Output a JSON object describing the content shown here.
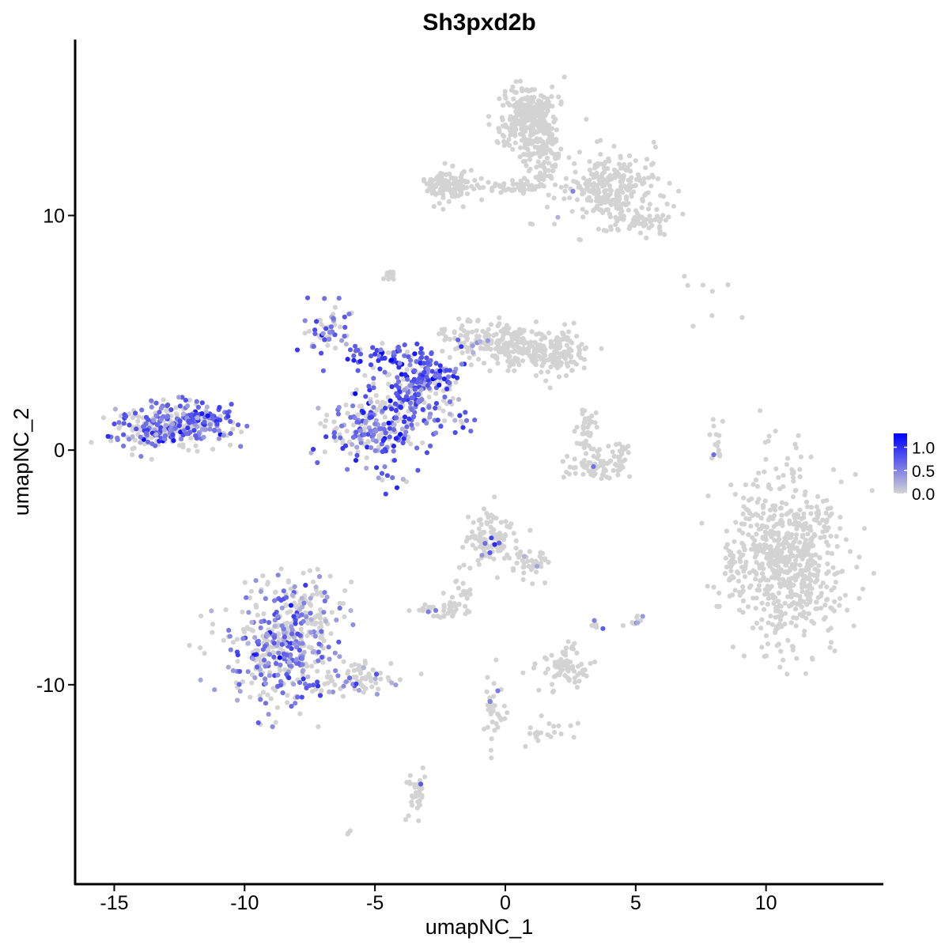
{
  "chart_data": {
    "type": "scatter",
    "title": "Sh3pxd2b",
    "xlabel": "umapNC_1",
    "ylabel": "umapNC_2",
    "xlim": [
      -16.5,
      14.5
    ],
    "ylim": [
      -18.5,
      17.5
    ],
    "x_ticks": [
      -15,
      -10,
      -5,
      0,
      5,
      10
    ],
    "x_tick_labels": [
      "-15",
      "-10",
      "-5",
      "0",
      "5",
      "10"
    ],
    "y_ticks": [
      -10,
      0,
      10
    ],
    "y_tick_labels": [
      "-10",
      "0",
      "10"
    ],
    "grid": false,
    "legend_position": "right",
    "color_scale": {
      "low_color": "#d3d3d3",
      "high_color": "#0000ff",
      "min": 0.0,
      "max": 1.3,
      "legend_ticks": [
        1.0,
        0.5,
        0.0
      ],
      "legend_tick_labels": [
        "1.0",
        "0.5",
        "0.0"
      ]
    },
    "clusters": [
      {
        "cx": 10.8,
        "cy": -4.6,
        "sx": 1.05,
        "sy": 1.8,
        "n": 650,
        "expr_frac": 0.0,
        "expr_mean": 0.0
      },
      {
        "cx": 8.6,
        "cy": -4.9,
        "sx": 0.15,
        "sy": 0.5,
        "n": 20,
        "expr_frac": 0.0,
        "expr_mean": 0.0
      },
      {
        "cx": 0.9,
        "cy": 14.1,
        "sx": 0.55,
        "sy": 0.75,
        "n": 320,
        "expr_frac": 0.0,
        "expr_mean": 0.0
      },
      {
        "cx": 1.5,
        "cy": 12.6,
        "sx": 0.35,
        "sy": 0.9,
        "n": 90,
        "expr_frac": 0.0,
        "expr_mean": 0.0
      },
      {
        "cx": 4.0,
        "cy": 11.1,
        "sx": 1.0,
        "sy": 0.8,
        "n": 260,
        "expr_frac": 0.01,
        "expr_mean": 0.5
      },
      {
        "cx": 5.3,
        "cy": 9.8,
        "sx": 0.55,
        "sy": 0.25,
        "n": 60,
        "expr_frac": 0.0,
        "expr_mean": 0.0
      },
      {
        "cx": -2.2,
        "cy": 11.3,
        "sx": 0.45,
        "sy": 0.35,
        "n": 120,
        "expr_frac": 0.0,
        "expr_mean": 0.0
      },
      {
        "cx": 0.2,
        "cy": 11.2,
        "sx": 0.7,
        "sy": 0.15,
        "n": 45,
        "expr_frac": 0.0,
        "expr_mean": 0.0
      },
      {
        "cx": -1.4,
        "cy": 4.8,
        "sx": 0.6,
        "sy": 0.45,
        "n": 80,
        "expr_frac": 0.1,
        "expr_mean": 0.45
      },
      {
        "cx": 0.3,
        "cy": 4.5,
        "sx": 0.6,
        "sy": 0.5,
        "n": 150,
        "expr_frac": 0.0,
        "expr_mean": 0.0
      },
      {
        "cx": 1.9,
        "cy": 4.1,
        "sx": 0.55,
        "sy": 0.45,
        "n": 150,
        "expr_frac": 0.0,
        "expr_mean": 0.0
      },
      {
        "cx": -4.4,
        "cy": 7.4,
        "sx": 0.12,
        "sy": 0.15,
        "n": 15,
        "expr_frac": 0.0,
        "expr_mean": 0.0
      },
      {
        "cx": -12.7,
        "cy": 1.1,
        "sx": 1.05,
        "sy": 0.45,
        "n": 280,
        "expr_frac": 0.62,
        "expr_mean": 0.65
      },
      {
        "cx": -11.5,
        "cy": 1.3,
        "sx": 0.35,
        "sy": 0.15,
        "n": 40,
        "expr_frac": 0.7,
        "expr_mean": 0.7
      },
      {
        "cx": -13.8,
        "cy": 0.6,
        "sx": 0.5,
        "sy": 0.3,
        "n": 50,
        "expr_frac": 0.35,
        "expr_mean": 0.55
      },
      {
        "cx": -4.9,
        "cy": 0.9,
        "sx": 0.95,
        "sy": 0.9,
        "n": 250,
        "expr_frac": 0.6,
        "expr_mean": 0.65
      },
      {
        "cx": -3.5,
        "cy": 2.5,
        "sx": 0.6,
        "sy": 0.6,
        "n": 90,
        "expr_frac": 0.7,
        "expr_mean": 0.7
      },
      {
        "cx": -4.3,
        "cy": 4.0,
        "sx": 0.75,
        "sy": 0.25,
        "n": 70,
        "expr_frac": 0.75,
        "expr_mean": 0.8
      },
      {
        "cx": -2.7,
        "cy": 3.1,
        "sx": 0.55,
        "sy": 0.35,
        "n": 70,
        "expr_frac": 0.75,
        "expr_mean": 0.75
      },
      {
        "cx": -6.8,
        "cy": 5.1,
        "sx": 0.45,
        "sy": 0.55,
        "n": 60,
        "expr_frac": 0.55,
        "expr_mean": 0.6
      },
      {
        "cx": -2.1,
        "cy": 1.4,
        "sx": 0.45,
        "sy": 0.4,
        "n": 25,
        "expr_frac": 0.5,
        "expr_mean": 0.6
      },
      {
        "cx": 3.1,
        "cy": 0.7,
        "sx": 0.2,
        "sy": 0.5,
        "n": 40,
        "expr_frac": 0.0,
        "expr_mean": 0.0
      },
      {
        "cx": 3.4,
        "cy": -0.7,
        "sx": 0.65,
        "sy": 0.25,
        "n": 70,
        "expr_frac": 0.01,
        "expr_mean": 0.5
      },
      {
        "cx": 4.4,
        "cy": -0.1,
        "sx": 0.2,
        "sy": 0.4,
        "n": 20,
        "expr_frac": 0.0,
        "expr_mean": 0.0
      },
      {
        "cx": 8.1,
        "cy": 0.3,
        "sx": 0.15,
        "sy": 0.5,
        "n": 15,
        "expr_frac": 0.2,
        "expr_mean": 0.6
      },
      {
        "cx": -0.5,
        "cy": -3.8,
        "sx": 0.5,
        "sy": 0.65,
        "n": 110,
        "expr_frac": 0.05,
        "expr_mean": 0.55
      },
      {
        "cx": 1.0,
        "cy": -4.8,
        "sx": 0.35,
        "sy": 0.45,
        "n": 40,
        "expr_frac": 0.03,
        "expr_mean": 0.55
      },
      {
        "cx": -1.6,
        "cy": -6.0,
        "sx": 0.25,
        "sy": 0.4,
        "n": 20,
        "expr_frac": 0.05,
        "expr_mean": 0.55
      },
      {
        "cx": -2.5,
        "cy": -6.8,
        "sx": 0.4,
        "sy": 0.2,
        "n": 35,
        "expr_frac": 0.06,
        "expr_mean": 0.55
      },
      {
        "cx": 2.3,
        "cy": -9.2,
        "sx": 0.55,
        "sy": 0.4,
        "n": 75,
        "expr_frac": 0.0,
        "expr_mean": 0.0
      },
      {
        "cx": 3.5,
        "cy": -7.5,
        "sx": 0.2,
        "sy": 0.2,
        "n": 8,
        "expr_frac": 0.2,
        "expr_mean": 0.5
      },
      {
        "cx": 5.0,
        "cy": -7.2,
        "sx": 0.15,
        "sy": 0.15,
        "n": 10,
        "expr_frac": 0.2,
        "expr_mean": 0.6
      },
      {
        "cx": -8.6,
        "cy": -8.7,
        "sx": 1.1,
        "sy": 1.2,
        "n": 350,
        "expr_frac": 0.5,
        "expr_mean": 0.55
      },
      {
        "cx": -8.0,
        "cy": -6.6,
        "sx": 0.9,
        "sy": 0.7,
        "n": 110,
        "expr_frac": 0.35,
        "expr_mean": 0.5
      },
      {
        "cx": -5.6,
        "cy": -9.8,
        "sx": 0.8,
        "sy": 0.35,
        "n": 70,
        "expr_frac": 0.2,
        "expr_mean": 0.5
      },
      {
        "cx": -3.4,
        "cy": -14.7,
        "sx": 0.2,
        "sy": 0.5,
        "n": 35,
        "expr_frac": 0.06,
        "expr_mean": 0.5
      },
      {
        "cx": -0.4,
        "cy": -11.0,
        "sx": 0.25,
        "sy": 0.7,
        "n": 35,
        "expr_frac": 0.1,
        "expr_mean": 0.55
      },
      {
        "cx": 1.6,
        "cy": -12.1,
        "sx": 0.5,
        "sy": 0.3,
        "n": 20,
        "expr_frac": 0.05,
        "expr_mean": 0.55
      },
      {
        "cx": 7.8,
        "cy": 6.8,
        "sx": 0.8,
        "sy": 0.5,
        "n": 8,
        "expr_frac": 0.0,
        "expr_mean": 0.0
      },
      {
        "cx": -6.0,
        "cy": -16.3,
        "sx": 0.05,
        "sy": 0.05,
        "n": 3,
        "expr_frac": 0.0,
        "expr_mean": 0.0
      }
    ]
  }
}
